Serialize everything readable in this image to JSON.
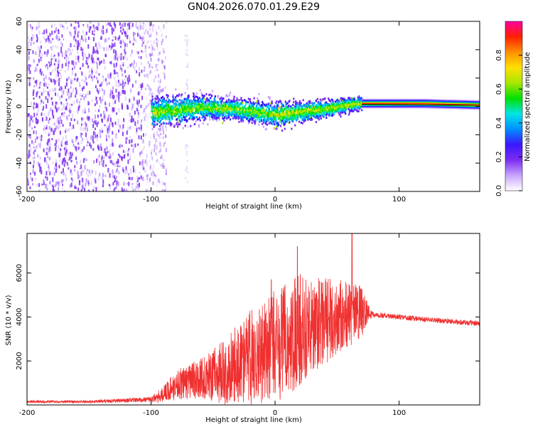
{
  "figure_title": "GN04.2026.070.01.29.E29",
  "chart_data": [
    {
      "type": "heatmap",
      "title": "GN04.2026.070.01.29.E29",
      "xlabel": "Height of straight line (km)",
      "ylabel": "Frequency (Hz)",
      "xlim": [
        -200,
        165
      ],
      "ylim": [
        -60,
        60
      ],
      "xticks": [
        -200,
        -100,
        0,
        100
      ],
      "xtick_labels": [
        "-200",
        "-100",
        "0",
        "100"
      ],
      "yticks": [
        -60,
        -40,
        -20,
        0,
        20,
        40,
        60
      ],
      "ytick_labels": [
        "-60",
        "-40",
        "-20",
        "0",
        "20",
        "40",
        "60"
      ],
      "noise_region_km": [
        -200,
        -95
      ],
      "band_region_km": [
        -100,
        70
      ],
      "steady_region_km": [
        70,
        165
      ],
      "band_center_hz": [
        {
          "x": -95,
          "y": -4
        },
        {
          "x": -60,
          "y": -1
        },
        {
          "x": -30,
          "y": -2
        },
        {
          "x": 0,
          "y": -6
        },
        {
          "x": 20,
          "y": -4
        },
        {
          "x": 40,
          "y": -2
        },
        {
          "x": 60,
          "y": 1
        },
        {
          "x": 70,
          "y": 2
        },
        {
          "x": 120,
          "y": 2
        },
        {
          "x": 165,
          "y": 1
        }
      ],
      "band_halfwidth_hz": [
        {
          "x": -95,
          "y": 10
        },
        {
          "x": -40,
          "y": 7
        },
        {
          "x": 0,
          "y": 8
        },
        {
          "x": 40,
          "y": 5
        },
        {
          "x": 70,
          "y": 4
        },
        {
          "x": 165,
          "y": 3
        }
      ],
      "colorbar": {
        "label": "Normalized spectral amplitude",
        "range": [
          0,
          1
        ],
        "ticks": [
          0.0,
          0.2,
          0.4,
          0.6,
          0.8
        ],
        "tick_labels": [
          "0.0",
          "0.2",
          "0.4",
          "0.6",
          "0.8"
        ],
        "colormap": [
          "#ffffff",
          "#c9a3ff",
          "#7b2cf0",
          "#3b17ff",
          "#0090ff",
          "#00e5e5",
          "#00e000",
          "#a8e600",
          "#ffe000",
          "#ff9000",
          "#ff2000",
          "#ff00a0"
        ]
      }
    },
    {
      "type": "line",
      "xlabel": "Height of straight line (km)",
      "ylabel": "SNR (10 * v/v)",
      "xlim": [
        -200,
        165
      ],
      "ylim": [
        0,
        7800
      ],
      "xticks": [
        -200,
        -100,
        0,
        100
      ],
      "xtick_labels": [
        "-200",
        "-100",
        "0",
        "100"
      ],
      "yticks": [
        2000,
        4000,
        6000
      ],
      "ytick_labels": [
        "2000",
        "4000",
        "6000"
      ],
      "color": "#f03030",
      "envelope": {
        "x": [
          -200,
          -150,
          -100,
          -90,
          -80,
          -60,
          -40,
          -20,
          0,
          10,
          20,
          30,
          40,
          50,
          60,
          70,
          75,
          80,
          100,
          120,
          140,
          165
        ],
        "mean": [
          150,
          150,
          250,
          500,
          900,
          1200,
          1500,
          2200,
          2600,
          3000,
          3500,
          3600,
          3800,
          4000,
          4100,
          4200,
          4200,
          4100,
          4000,
          3900,
          3800,
          3700
        ],
        "amp": [
          60,
          60,
          120,
          400,
          700,
          900,
          1500,
          2200,
          2600,
          2600,
          2600,
          2200,
          2000,
          1800,
          1500,
          1200,
          400,
          120,
          120,
          120,
          120,
          120
        ]
      },
      "peaks": [
        {
          "x": 18,
          "y": 7200
        },
        {
          "x": 62,
          "y": 7800
        },
        {
          "x": -3,
          "y": 5700
        }
      ]
    }
  ]
}
